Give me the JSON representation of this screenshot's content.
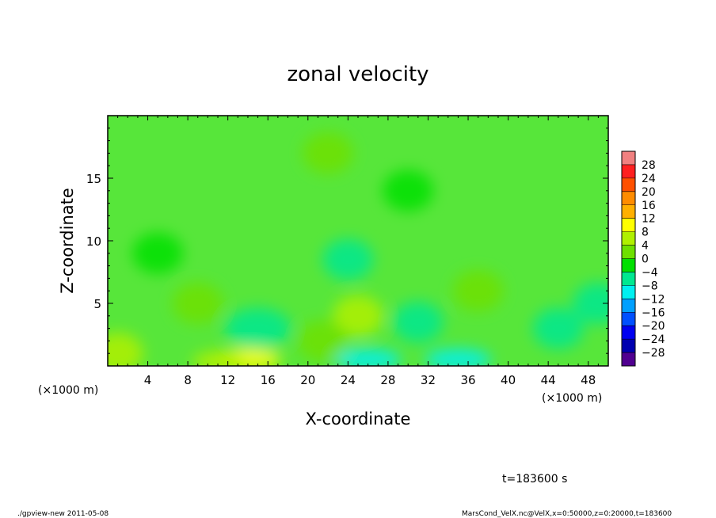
{
  "chart_data": {
    "type": "heatmap",
    "title": "zonal velocity",
    "xlabel": "X-coordinate",
    "ylabel": "Z-coordinate",
    "x_unit_label": "(×1000 m)",
    "x_unit_label_right": "(×1000 m)",
    "xlim": [
      0,
      50
    ],
    "ylim": [
      0,
      20
    ],
    "xticks": [
      4,
      8,
      12,
      16,
      20,
      24,
      28,
      32,
      36,
      40,
      44,
      48
    ],
    "yticks": [
      5,
      10,
      15
    ],
    "time_label": "t=183600 s",
    "colorbar": {
      "levels": [
        28,
        24,
        20,
        16,
        12,
        8,
        4,
        0,
        -4,
        -8,
        -12,
        -16,
        -20,
        -24,
        -28
      ],
      "level_labels": [
        "28",
        "24",
        "20",
        "16",
        "12",
        "8",
        "4",
        "0",
        "−4",
        "−8",
        "−12",
        "−16",
        "−20",
        "−24",
        "−28"
      ],
      "colors": [
        "#f08080",
        "#ff2020",
        "#ff5000",
        "#ff8c00",
        "#ffb000",
        "#ffff00",
        "#b0f000",
        "#6ee000",
        "#00e000",
        "#00e890",
        "#00f0f0",
        "#00a0ff",
        "#0050ff",
        "#0000f0",
        "#0000b0",
        "#500090"
      ]
    },
    "features": [
      {
        "x": 14,
        "z": 0.5,
        "value": 10
      },
      {
        "x": 25,
        "z": 4,
        "value": 6
      },
      {
        "x": 26,
        "z": 0.5,
        "value": -9
      },
      {
        "x": 35,
        "z": 0.5,
        "value": -10
      },
      {
        "x": 15,
        "z": 3,
        "value": -8
      },
      {
        "x": 21.5,
        "z": 2,
        "value": 3
      },
      {
        "x": 31,
        "z": 3.5,
        "value": -6
      },
      {
        "x": 37,
        "z": 6,
        "value": 3
      },
      {
        "x": 24,
        "z": 8.5,
        "value": -6
      },
      {
        "x": 5,
        "z": 9,
        "value": -3
      },
      {
        "x": 9,
        "z": 5,
        "value": 3
      },
      {
        "x": 45,
        "z": 3,
        "value": -6
      },
      {
        "x": 49,
        "z": 5,
        "value": -6
      },
      {
        "x": 11,
        "z": 0.3,
        "value": 6
      },
      {
        "x": 1,
        "z": 1,
        "value": 4
      },
      {
        "x": 22,
        "z": 17,
        "value": 1
      },
      {
        "x": 30,
        "z": 14,
        "value": -1
      }
    ]
  },
  "footer": {
    "left": "./gpview-new   2011-05-08",
    "right": "MarsCond_VelX.nc@VelX,x=0:50000,z=0:20000,t=183600"
  }
}
